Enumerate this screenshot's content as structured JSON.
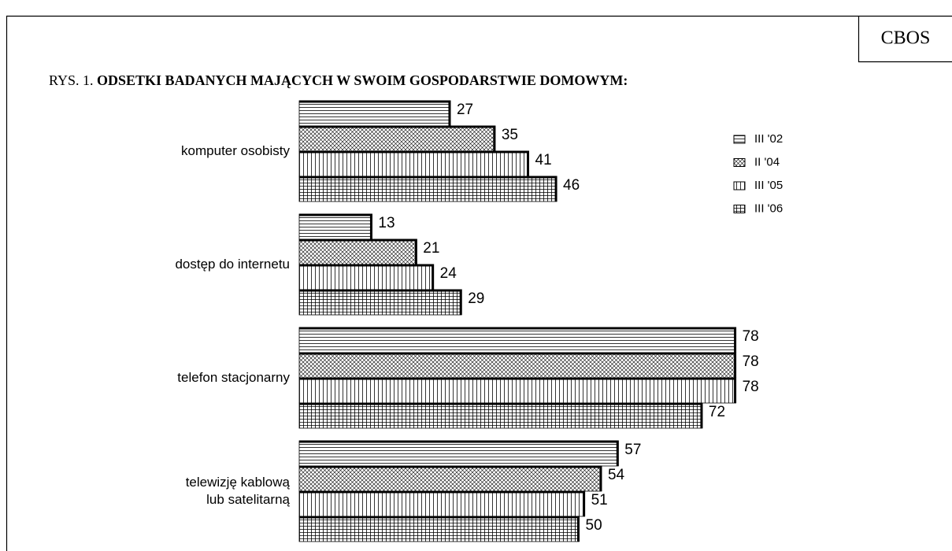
{
  "chart_data": {
    "type": "hbar",
    "source": "CBOS",
    "label": "RYS. 1.",
    "title": "ODSETKI BADANYCH MAJĄCYCH W SWOIM GOSPODARSTWIE DOMOWYM:",
    "categories": [
      "komputer osobisty",
      "dostęp do internetu",
      "telefon stacjonarny",
      "telewizję kablową\nlub satelitarną"
    ],
    "series": [
      {
        "name": "III '02",
        "color": "#000000",
        "pattern": "horizontal",
        "values": [
          27,
          13,
          78,
          57
        ]
      },
      {
        "name": "II '04",
        "color": "#000000",
        "pattern": "crosshatch",
        "values": [
          35,
          21,
          78,
          54
        ]
      },
      {
        "name": "III '05",
        "color": "#000000",
        "pattern": "vertical",
        "values": [
          41,
          24,
          78,
          51
        ]
      },
      {
        "name": "III '06",
        "color": "#000000",
        "pattern": "grid",
        "values": [
          46,
          29,
          72,
          50
        ]
      }
    ],
    "xlim": [
      0,
      100
    ],
    "legend": "top-right"
  }
}
